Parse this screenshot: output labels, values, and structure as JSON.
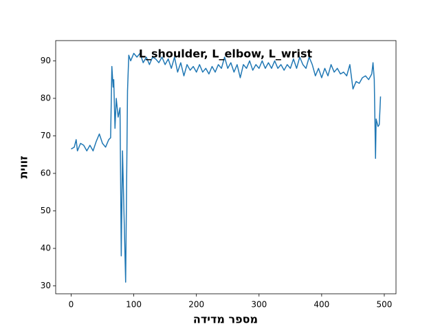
{
  "chart_data": {
    "type": "line",
    "title": "L_shoulder, L_elbow, L_wrist",
    "x_label": "מספר מדידה",
    "y_label": "זווית",
    "x": [
      0,
      5,
      8,
      10,
      15,
      20,
      25,
      30,
      35,
      40,
      45,
      50,
      55,
      60,
      63,
      65,
      67,
      68,
      70,
      72,
      75,
      78,
      80,
      82,
      85,
      87,
      90,
      92,
      95,
      100,
      105,
      110,
      115,
      120,
      125,
      130,
      135,
      140,
      145,
      150,
      155,
      160,
      165,
      170,
      175,
      180,
      185,
      190,
      195,
      200,
      205,
      210,
      215,
      220,
      225,
      230,
      235,
      240,
      245,
      250,
      255,
      260,
      265,
      270,
      275,
      280,
      285,
      290,
      295,
      300,
      305,
      310,
      315,
      320,
      325,
      330,
      335,
      340,
      345,
      350,
      355,
      360,
      365,
      370,
      375,
      380,
      385,
      390,
      395,
      400,
      405,
      410,
      415,
      420,
      425,
      430,
      435,
      440,
      445,
      450,
      455,
      460,
      465,
      470,
      475,
      480,
      482,
      484,
      486,
      487,
      490,
      492,
      494
    ],
    "series": [
      {
        "color": "#1f77b4",
        "values": [
          66.5,
          67,
          69,
          66,
          68,
          67.5,
          66,
          67.5,
          66,
          68.5,
          70.5,
          68,
          67,
          69,
          69.5,
          88.5,
          83,
          85,
          72,
          80,
          75,
          77.5,
          38,
          66,
          45,
          31,
          82,
          91.5,
          90,
          92,
          91,
          92,
          89.5,
          91,
          89,
          91,
          90.5,
          89.5,
          91,
          89,
          90.5,
          88,
          91,
          87,
          89.5,
          86,
          89,
          87.5,
          88.5,
          87,
          89,
          87,
          88,
          86.5,
          88.5,
          87,
          89,
          88,
          91,
          88,
          89.5,
          87,
          89,
          85.5,
          89,
          88,
          90,
          87.5,
          89,
          88,
          90,
          88,
          89.5,
          88,
          90,
          88,
          89,
          87.5,
          89,
          88,
          90.5,
          88,
          91,
          89,
          88,
          91,
          89,
          86,
          88,
          85.5,
          88,
          86,
          89,
          87,
          88,
          86.5,
          87,
          86,
          89,
          82.5,
          84.5,
          84,
          85.5,
          86,
          85,
          86.5,
          89.5,
          85,
          64,
          74.5,
          72.5,
          73,
          80.5
        ]
      }
    ],
    "xlim": [
      -24.7,
      518.7
    ],
    "ylim": [
      27.9,
      95.4
    ],
    "xticks": [
      0,
      100,
      200,
      300,
      400,
      500
    ],
    "yticks": [
      30,
      40,
      50,
      60,
      70,
      80,
      90
    ]
  }
}
